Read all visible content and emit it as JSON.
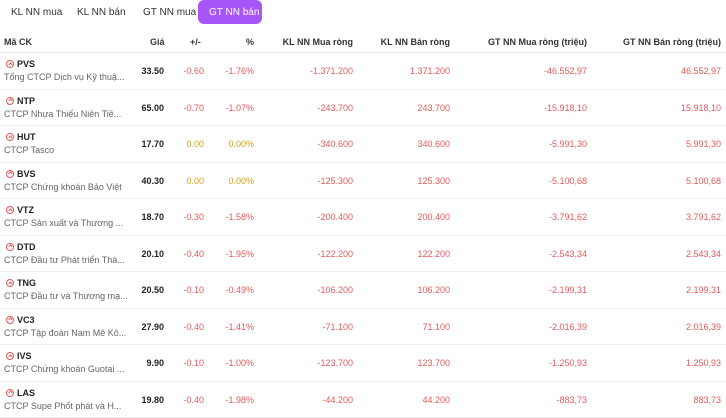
{
  "tabs": [
    {
      "label": "KL NN mua"
    },
    {
      "label": "KL NN bán"
    },
    {
      "label": "GT NN mua"
    },
    {
      "label": "GT NN bán",
      "active": true
    }
  ],
  "columns": {
    "code": "Mã CK",
    "price": "Giá",
    "change": "+/-",
    "pct": "%",
    "kl_buy": "KL NN Mua ròng",
    "kl_sell": "KL NN Bán ròng",
    "gt_buy": "GT NN Mua ròng (triệu)",
    "gt_sell": "GT NN Bán ròng (triệu)"
  },
  "colors": {
    "accent": "#a855f7",
    "down": "#e25b5b",
    "ref": "#d4a017"
  },
  "rows": [
    {
      "sym": "PVS",
      "name": "Tổng CTCP Dịch vụ Kỹ thuậ...",
      "price": "33.50",
      "change": "-0.60",
      "pct": "-1.76%",
      "kl_buy": "-1.371.200",
      "kl_sell": "1.371.200",
      "gt_buy": "-46.552,97",
      "gt_sell": "46.552,97",
      "status": "down"
    },
    {
      "sym": "NTP",
      "name": "CTCP Nhựa Thiếu Niên Tiề...",
      "price": "65.00",
      "change": "-0.70",
      "pct": "-1.07%",
      "kl_buy": "-243.700",
      "kl_sell": "243.700",
      "gt_buy": "-15.918,10",
      "gt_sell": "15.918,10",
      "status": "down"
    },
    {
      "sym": "HUT",
      "name": "CTCP Tasco",
      "price": "17.70",
      "change": "0.00",
      "pct": "0.00%",
      "kl_buy": "-340.600",
      "kl_sell": "340.600",
      "gt_buy": "-5.991,30",
      "gt_sell": "5.991,30",
      "status": "ref"
    },
    {
      "sym": "BVS",
      "name": "CTCP Chứng khoán Bảo Việt",
      "price": "40.30",
      "change": "0.00",
      "pct": "0.00%",
      "kl_buy": "-125.300",
      "kl_sell": "125.300",
      "gt_buy": "-5.100,68",
      "gt_sell": "5.100,68",
      "status": "ref"
    },
    {
      "sym": "VTZ",
      "name": "CTCP Sản xuất và Thương ...",
      "price": "18.70",
      "change": "-0.30",
      "pct": "-1.58%",
      "kl_buy": "-200.400",
      "kl_sell": "200.400",
      "gt_buy": "-3.791,62",
      "gt_sell": "3.791,62",
      "status": "down"
    },
    {
      "sym": "DTD",
      "name": "CTCP Đầu tư Phát triển Thà...",
      "price": "20.10",
      "change": "-0.40",
      "pct": "-1.95%",
      "kl_buy": "-122.200",
      "kl_sell": "122.200",
      "gt_buy": "-2.543,34",
      "gt_sell": "2.543,34",
      "status": "down"
    },
    {
      "sym": "TNG",
      "name": "CTCP Đầu tư và Thương mạ...",
      "price": "20.50",
      "change": "-0.10",
      "pct": "-0.49%",
      "kl_buy": "-106.200",
      "kl_sell": "106.200",
      "gt_buy": "-2.199,31",
      "gt_sell": "2.199,31",
      "status": "down"
    },
    {
      "sym": "VC3",
      "name": "CTCP Tập đoàn Nam Mê Kô...",
      "price": "27.90",
      "change": "-0.40",
      "pct": "-1.41%",
      "kl_buy": "-71.100",
      "kl_sell": "71.100",
      "gt_buy": "-2.016,39",
      "gt_sell": "2.016,39",
      "status": "down"
    },
    {
      "sym": "IVS",
      "name": "CTCP Chứng khoán Guotai ...",
      "price": "9.90",
      "change": "-0.10",
      "pct": "-1.00%",
      "kl_buy": "-123.700",
      "kl_sell": "123.700",
      "gt_buy": "-1.250,93",
      "gt_sell": "1.250,93",
      "status": "down"
    },
    {
      "sym": "LAS",
      "name": "CTCP Supe Phốt phát và H...",
      "price": "19.80",
      "change": "-0.40",
      "pct": "-1.98%",
      "kl_buy": "-44.200",
      "kl_sell": "44.200",
      "gt_buy": "-883,73",
      "gt_sell": "883,73",
      "status": "down"
    }
  ]
}
